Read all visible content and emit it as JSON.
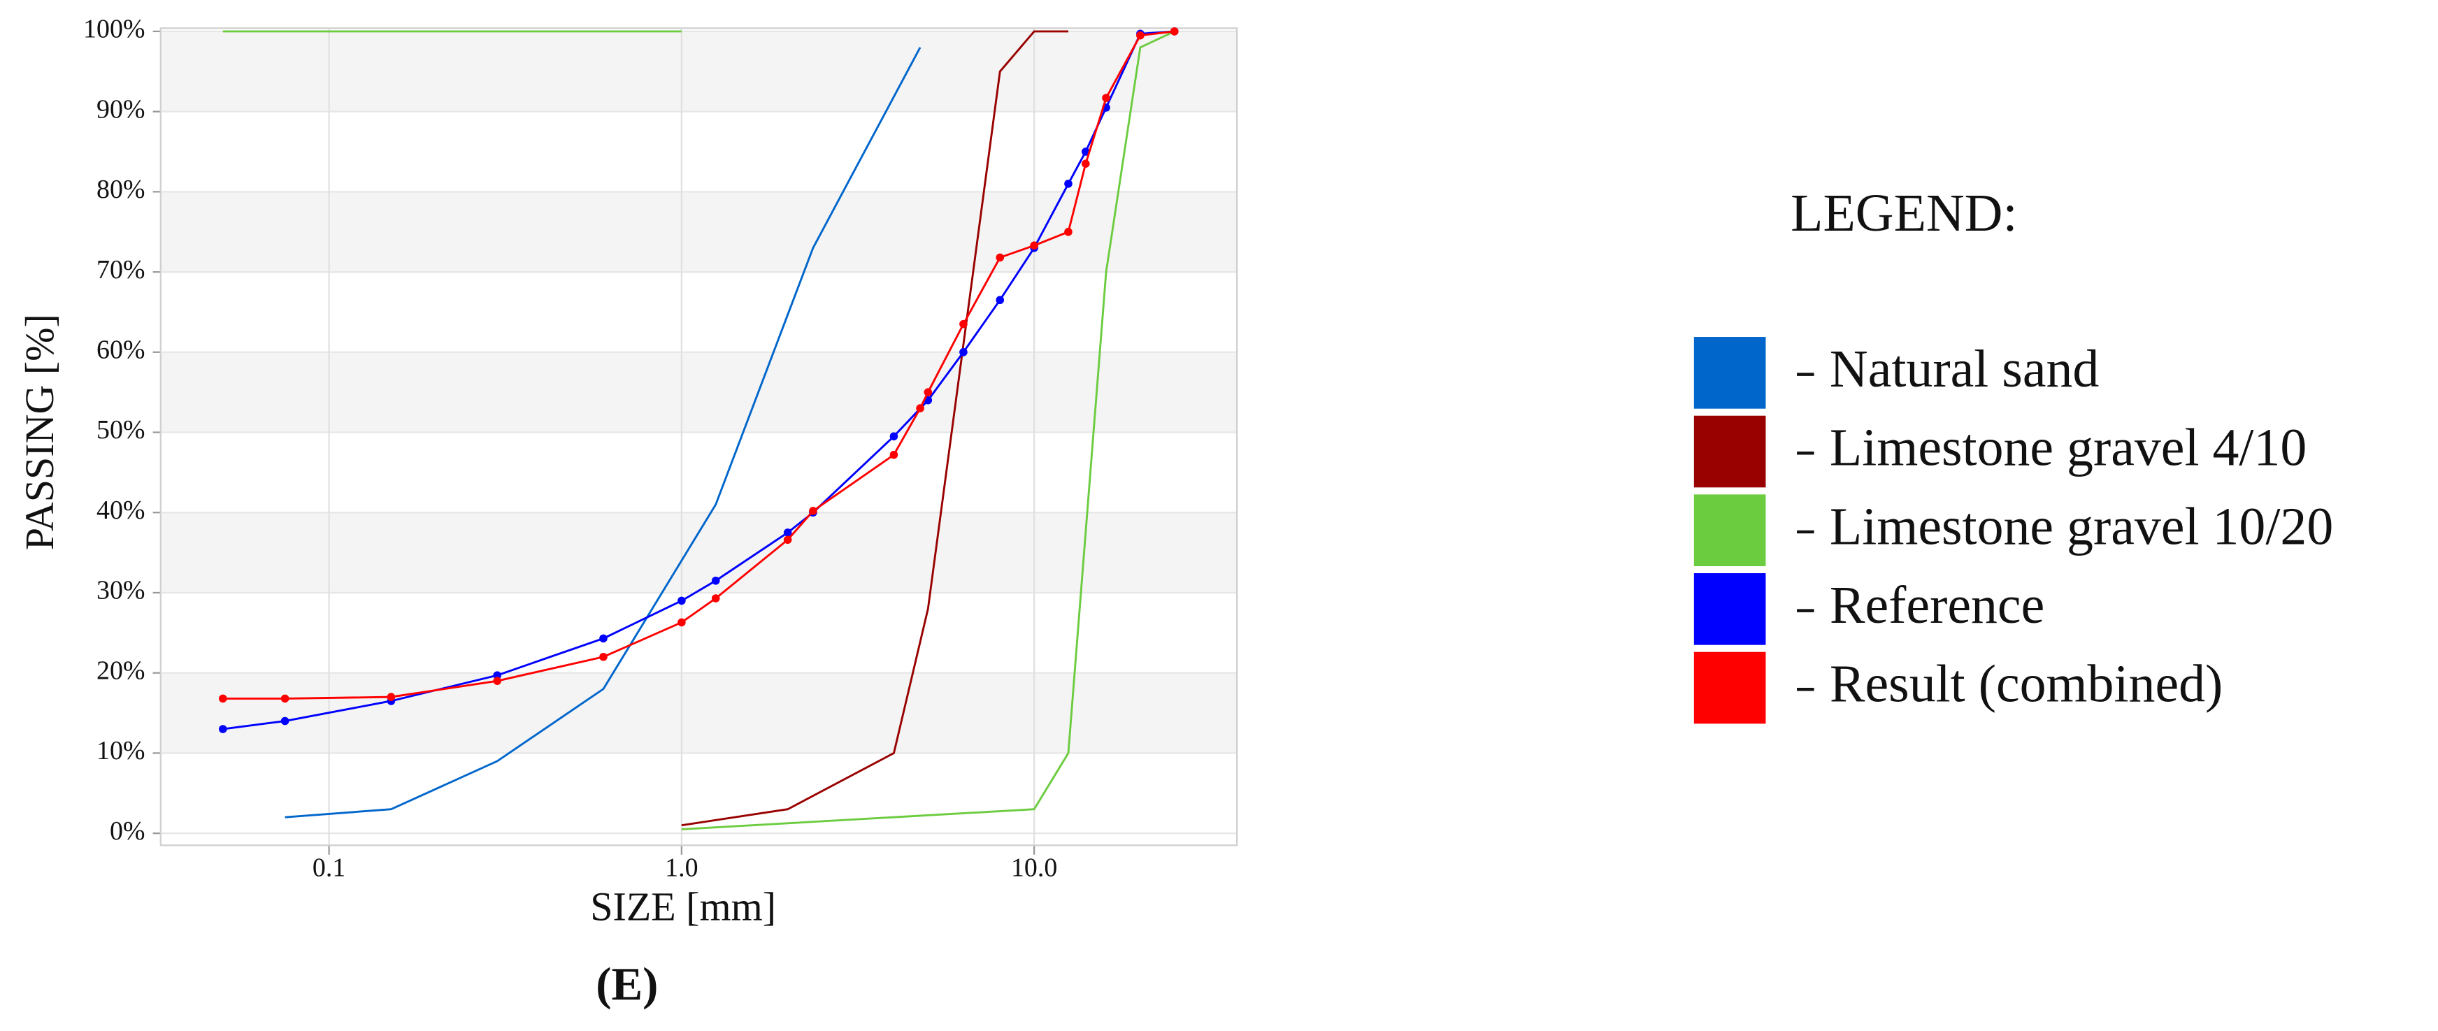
{
  "chart_data": {
    "type": "line",
    "x_label": "SIZE [mm]",
    "y_label": "PASSING [%]",
    "caption": "(E)",
    "legend_title": "LEGEND:",
    "x_log": true,
    "grid": true,
    "xlim": [
      0.0333,
      37.6
    ],
    "xticks": [
      0.1,
      {
        "value": 1,
        "label": "1.0"
      },
      {
        "value": 10,
        "label": "10.0"
      }
    ],
    "ylim": [
      -1.5,
      100.4
    ],
    "yticks": [
      {
        "value": 0,
        "label": "0%"
      },
      {
        "value": 10,
        "label": "10%"
      },
      {
        "value": 20,
        "label": "20%"
      },
      {
        "value": 30,
        "label": "30%"
      },
      {
        "value": 40,
        "label": "40%"
      },
      {
        "value": 50,
        "label": "50%"
      },
      {
        "value": 60,
        "label": "60%"
      },
      {
        "value": 70,
        "label": "70%"
      },
      {
        "value": 80,
        "label": "80%"
      },
      {
        "value": 90,
        "label": "90%"
      },
      {
        "value": 100,
        "label": "100%"
      }
    ],
    "series": [
      {
        "name": "Natural sand",
        "color": "#0066cc",
        "markers": false,
        "x": [
          0.075,
          0.15,
          0.3,
          0.6,
          1.25,
          2.36,
          4.75
        ],
        "values": [
          2,
          3,
          9,
          18,
          41,
          73,
          98
        ]
      },
      {
        "name": "Limestone gravel 4/10",
        "color": "#990000",
        "markers": false,
        "x": [
          1,
          2,
          4,
          5,
          8,
          10,
          12.5
        ],
        "values": [
          1,
          3,
          10,
          28,
          95,
          100,
          100
        ]
      },
      {
        "name": "Limestone gravel 10/20",
        "color": "#6ccc40",
        "markers": false,
        "x": [
          0.05,
          1,
          1,
          1,
          10,
          12.5,
          16,
          20,
          25
        ],
        "values": [
          100,
          100,
          null,
          0.5,
          3,
          10,
          70,
          98,
          100
        ]
      },
      {
        "name": "Reference",
        "color": "#0000ff",
        "markers": true,
        "x": [
          0.05,
          0.075,
          0.15,
          0.3,
          0.6,
          1,
          1.25,
          2,
          2.36,
          4,
          5,
          6.3,
          8,
          10,
          12.5,
          14,
          16,
          20,
          25
        ],
        "values": [
          13,
          14,
          16.5,
          19.7,
          24.3,
          29,
          31.5,
          37.5,
          40,
          49.5,
          54,
          60,
          66.5,
          73,
          81,
          85,
          90.5,
          99.7,
          100
        ]
      },
      {
        "name": "Result (combined)",
        "color": "#ff0000",
        "markers": true,
        "x": [
          0.05,
          0.075,
          0.15,
          0.3,
          0.6,
          1,
          1.25,
          2,
          2.36,
          4,
          4.75,
          5,
          6.3,
          8,
          10,
          12.5,
          14,
          16,
          20,
          25
        ],
        "values": [
          16.8,
          16.8,
          17,
          19,
          22,
          26.3,
          29.3,
          36.6,
          40.2,
          47.2,
          53,
          55,
          63.5,
          71.8,
          73.3,
          75,
          83.5,
          91.7,
          99.5,
          100
        ]
      }
    ]
  }
}
